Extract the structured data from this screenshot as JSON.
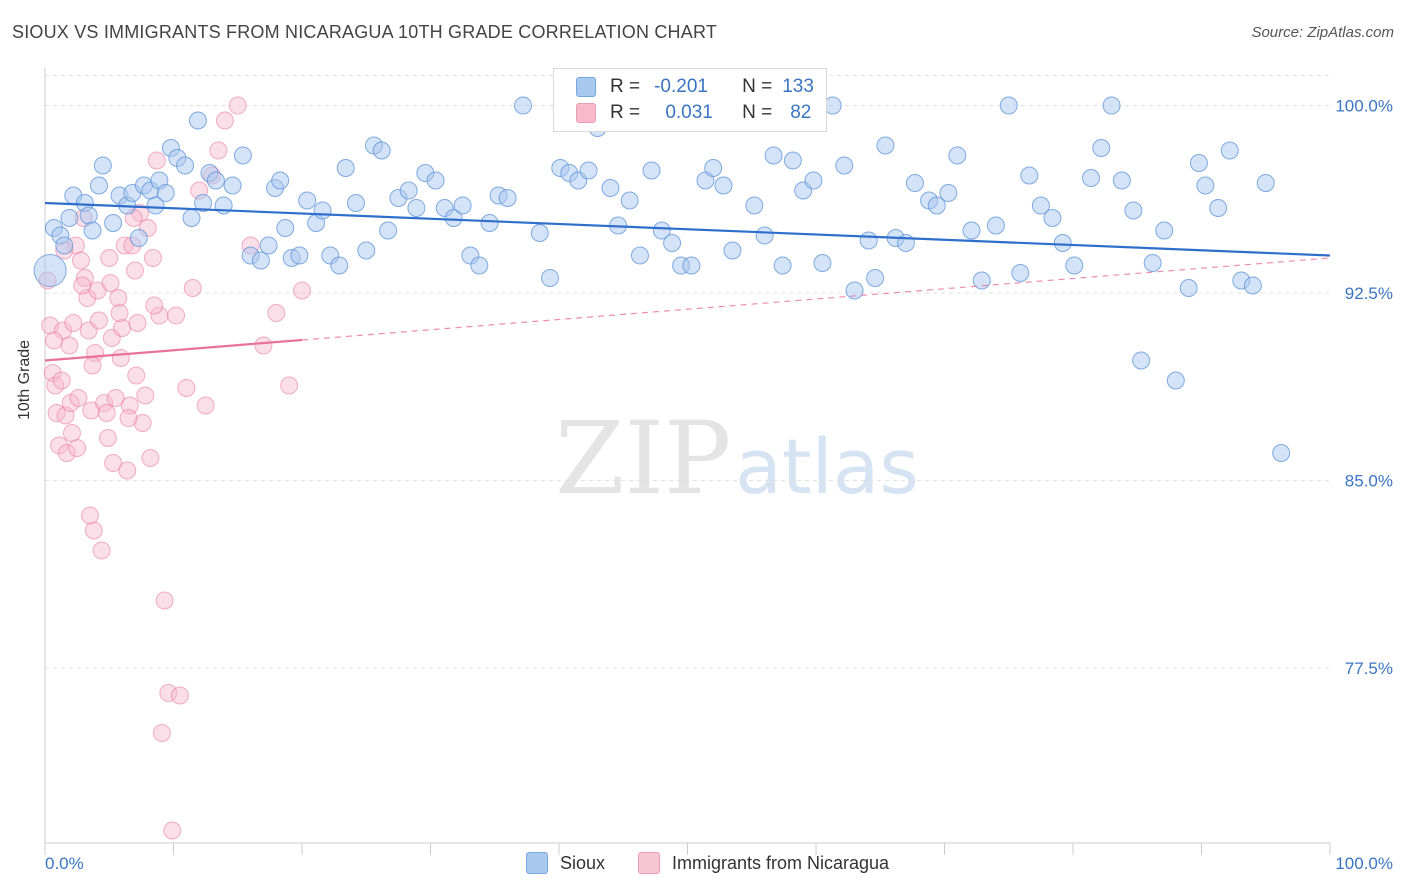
{
  "header": {
    "title": "SIOUX VS IMMIGRANTS FROM NICARAGUA 10TH GRADE CORRELATION CHART",
    "source": "Source: ZipAtlas.com"
  },
  "watermark": {
    "zip": "ZIP",
    "atlas": "atlas"
  },
  "legend": {
    "rows": [
      {
        "r_label": "R =",
        "r_value": "-0.201",
        "n_label": "N =",
        "n_value": "133",
        "color": "#a9c8f0"
      },
      {
        "r_label": "R =",
        "r_value": "0.031",
        "n_label": "N =",
        "n_value": "82",
        "color": "#f7b9cb"
      }
    ]
  },
  "bottom_legend": {
    "sioux": "Sioux",
    "nicaragua": "Immigrants from Nicaragua"
  },
  "chart_data": {
    "type": "scatter",
    "title": "SIOUX VS IMMIGRANTS FROM NICARAGUA 10TH GRADE CORRELATION CHART",
    "xlabel": "",
    "ylabel": "10th Grade",
    "xlim": [
      0,
      100
    ],
    "ylim": [
      70.5,
      101.5
    ],
    "x_tick_labels": [
      "0.0%",
      "100.0%"
    ],
    "y_ticks": [
      77.5,
      85.0,
      92.5,
      100.0
    ],
    "y_tick_labels": [
      "77.5%",
      "85.0%",
      "92.5%",
      "100.0%"
    ],
    "grid": true,
    "legend_position": "top-center",
    "series": [
      {
        "name": "Sioux",
        "color": "#5b93d8",
        "fill": "#a9c8f0",
        "trend": {
          "x": [
            0,
            100
          ],
          "y": [
            96.1,
            94.0
          ],
          "style": "solid"
        },
        "points": [
          [
            0.4,
            93.4
          ],
          [
            0.7,
            95.1
          ],
          [
            1.2,
            94.8
          ],
          [
            1.5,
            94.4
          ],
          [
            1.9,
            95.5
          ],
          [
            2.2,
            96.4
          ],
          [
            3.1,
            96.1
          ],
          [
            3.4,
            95.6
          ],
          [
            3.7,
            95.0
          ],
          [
            4.2,
            96.8
          ],
          [
            4.5,
            97.6
          ],
          [
            5.3,
            95.3
          ],
          [
            5.8,
            96.4
          ],
          [
            6.4,
            96.0
          ],
          [
            6.8,
            96.5
          ],
          [
            7.3,
            94.7
          ],
          [
            7.7,
            96.8
          ],
          [
            8.2,
            96.6
          ],
          [
            8.6,
            96.0
          ],
          [
            8.9,
            97.0
          ],
          [
            9.4,
            96.5
          ],
          [
            9.8,
            98.3
          ],
          [
            10.3,
            97.9
          ],
          [
            10.9,
            97.6
          ],
          [
            11.4,
            95.5
          ],
          [
            11.9,
            99.4
          ],
          [
            12.3,
            96.1
          ],
          [
            12.8,
            97.3
          ],
          [
            13.3,
            97.0
          ],
          [
            13.9,
            96.0
          ],
          [
            14.6,
            96.8
          ],
          [
            15.4,
            98.0
          ],
          [
            16.0,
            94.0
          ],
          [
            16.8,
            93.8
          ],
          [
            17.4,
            94.4
          ],
          [
            17.9,
            96.7
          ],
          [
            18.3,
            97.0
          ],
          [
            18.7,
            95.1
          ],
          [
            19.2,
            93.9
          ],
          [
            19.8,
            94.0
          ],
          [
            20.4,
            96.2
          ],
          [
            21.1,
            95.3
          ],
          [
            21.6,
            95.8
          ],
          [
            22.2,
            94.0
          ],
          [
            22.9,
            93.6
          ],
          [
            23.4,
            97.5
          ],
          [
            24.2,
            96.1
          ],
          [
            25.0,
            94.2
          ],
          [
            25.6,
            98.4
          ],
          [
            26.2,
            98.2
          ],
          [
            26.7,
            95.0
          ],
          [
            27.5,
            96.3
          ],
          [
            28.3,
            96.6
          ],
          [
            28.9,
            95.9
          ],
          [
            29.6,
            97.3
          ],
          [
            30.4,
            97.0
          ],
          [
            31.1,
            95.9
          ],
          [
            31.8,
            95.5
          ],
          [
            32.5,
            96.0
          ],
          [
            33.1,
            94.0
          ],
          [
            33.8,
            93.6
          ],
          [
            34.6,
            95.3
          ],
          [
            35.3,
            96.4
          ],
          [
            36.0,
            96.3
          ],
          [
            37.2,
            100.0
          ],
          [
            38.5,
            94.9
          ],
          [
            39.3,
            93.1
          ],
          [
            40.1,
            97.5
          ],
          [
            40.8,
            97.3
          ],
          [
            41.5,
            97.0
          ],
          [
            42.3,
            97.4
          ],
          [
            43.0,
            99.1
          ],
          [
            44.0,
            96.7
          ],
          [
            44.6,
            95.2
          ],
          [
            45.5,
            96.2
          ],
          [
            46.3,
            94.0
          ],
          [
            47.2,
            97.4
          ],
          [
            48.0,
            95.0
          ],
          [
            48.8,
            94.5
          ],
          [
            49.5,
            93.6
          ],
          [
            50.3,
            93.6
          ],
          [
            51.4,
            97.0
          ],
          [
            52.0,
            97.5
          ],
          [
            52.8,
            96.8
          ],
          [
            53.5,
            94.2
          ],
          [
            54.5,
            100.0
          ],
          [
            55.2,
            96.0
          ],
          [
            56.0,
            94.8
          ],
          [
            56.7,
            98.0
          ],
          [
            57.4,
            93.6
          ],
          [
            58.2,
            97.8
          ],
          [
            59.0,
            96.6
          ],
          [
            59.8,
            97.0
          ],
          [
            60.5,
            93.7
          ],
          [
            61.3,
            100.0
          ],
          [
            62.2,
            97.6
          ],
          [
            63.0,
            92.6
          ],
          [
            64.1,
            94.6
          ],
          [
            64.6,
            93.1
          ],
          [
            65.4,
            98.4
          ],
          [
            66.2,
            94.7
          ],
          [
            67.0,
            94.5
          ],
          [
            67.7,
            96.9
          ],
          [
            68.8,
            96.2
          ],
          [
            69.4,
            96.0
          ],
          [
            70.3,
            96.5
          ],
          [
            71.0,
            98.0
          ],
          [
            72.1,
            95.0
          ],
          [
            72.9,
            93.0
          ],
          [
            74.0,
            95.2
          ],
          [
            75.0,
            100.0
          ],
          [
            75.9,
            93.3
          ],
          [
            76.6,
            97.2
          ],
          [
            77.5,
            96.0
          ],
          [
            78.4,
            95.5
          ],
          [
            79.2,
            94.5
          ],
          [
            80.1,
            93.6
          ],
          [
            81.4,
            97.1
          ],
          [
            82.2,
            98.3
          ],
          [
            83.0,
            100.0
          ],
          [
            83.8,
            97.0
          ],
          [
            84.7,
            95.8
          ],
          [
            85.3,
            89.8
          ],
          [
            86.2,
            93.7
          ],
          [
            87.1,
            95.0
          ],
          [
            88.0,
            89.0
          ],
          [
            89.0,
            92.7
          ],
          [
            89.8,
            97.7
          ],
          [
            90.3,
            96.8
          ],
          [
            91.3,
            95.9
          ],
          [
            92.2,
            98.2
          ],
          [
            93.1,
            93.0
          ],
          [
            94.0,
            92.8
          ],
          [
            95.0,
            96.9
          ],
          [
            96.2,
            86.1
          ]
        ]
      },
      {
        "name": "Immigrants from Nicaragua",
        "color": "#e8729b",
        "fill": "#f7b9cb",
        "trend": {
          "x": [
            0,
            100
          ],
          "y": [
            89.8,
            93.9
          ],
          "style": "solid-then-dashed",
          "solid_until_x": 20
        },
        "points": [
          [
            0.2,
            93.0
          ],
          [
            0.4,
            91.2
          ],
          [
            0.6,
            89.3
          ],
          [
            0.8,
            88.8
          ],
          [
            0.9,
            87.7
          ],
          [
            1.1,
            86.4
          ],
          [
            1.3,
            89.0
          ],
          [
            1.4,
            91.0
          ],
          [
            1.6,
            87.6
          ],
          [
            1.7,
            86.1
          ],
          [
            1.9,
            90.4
          ],
          [
            2.0,
            88.1
          ],
          [
            2.2,
            91.3
          ],
          [
            2.4,
            94.4
          ],
          [
            2.5,
            86.3
          ],
          [
            2.6,
            88.3
          ],
          [
            2.8,
            93.8
          ],
          [
            3.0,
            95.5
          ],
          [
            3.1,
            93.1
          ],
          [
            3.3,
            92.3
          ],
          [
            3.4,
            91.0
          ],
          [
            3.6,
            87.8
          ],
          [
            3.8,
            83.0
          ],
          [
            3.9,
            90.1
          ],
          [
            4.1,
            92.6
          ],
          [
            4.2,
            91.4
          ],
          [
            4.4,
            82.2
          ],
          [
            4.6,
            88.1
          ],
          [
            4.8,
            87.7
          ],
          [
            5.0,
            93.9
          ],
          [
            5.2,
            90.7
          ],
          [
            5.3,
            85.7
          ],
          [
            5.5,
            88.3
          ],
          [
            5.7,
            92.3
          ],
          [
            5.9,
            89.9
          ],
          [
            6.0,
            91.1
          ],
          [
            6.2,
            94.4
          ],
          [
            6.4,
            85.4
          ],
          [
            6.6,
            88.0
          ],
          [
            6.8,
            94.4
          ],
          [
            7.0,
            93.4
          ],
          [
            7.2,
            91.3
          ],
          [
            7.4,
            95.7
          ],
          [
            7.6,
            87.3
          ],
          [
            7.8,
            88.4
          ],
          [
            8.0,
            95.1
          ],
          [
            8.2,
            85.9
          ],
          [
            8.4,
            93.9
          ],
          [
            8.7,
            97.8
          ],
          [
            8.9,
            91.6
          ],
          [
            9.1,
            74.9
          ],
          [
            9.3,
            80.2
          ],
          [
            9.6,
            76.5
          ],
          [
            9.9,
            71.0
          ],
          [
            10.2,
            91.6
          ],
          [
            10.5,
            76.4
          ],
          [
            11.0,
            88.7
          ],
          [
            11.5,
            92.7
          ],
          [
            12.0,
            96.6
          ],
          [
            12.5,
            88.0
          ],
          [
            13.0,
            97.2
          ],
          [
            13.5,
            98.2
          ],
          [
            14.0,
            99.4
          ],
          [
            15.0,
            100.0
          ],
          [
            16.0,
            94.4
          ],
          [
            17.0,
            90.4
          ],
          [
            18.0,
            91.7
          ],
          [
            19.0,
            88.8
          ],
          [
            20.0,
            92.6
          ],
          [
            3.5,
            83.6
          ],
          [
            5.8,
            91.7
          ],
          [
            6.5,
            87.5
          ],
          [
            7.1,
            89.2
          ],
          [
            2.9,
            92.8
          ],
          [
            1.5,
            94.2
          ],
          [
            4.9,
            86.7
          ],
          [
            8.5,
            92.0
          ],
          [
            0.7,
            90.6
          ],
          [
            2.1,
            86.9
          ],
          [
            3.7,
            89.6
          ],
          [
            5.1,
            92.9
          ],
          [
            6.9,
            95.5
          ]
        ]
      }
    ]
  }
}
